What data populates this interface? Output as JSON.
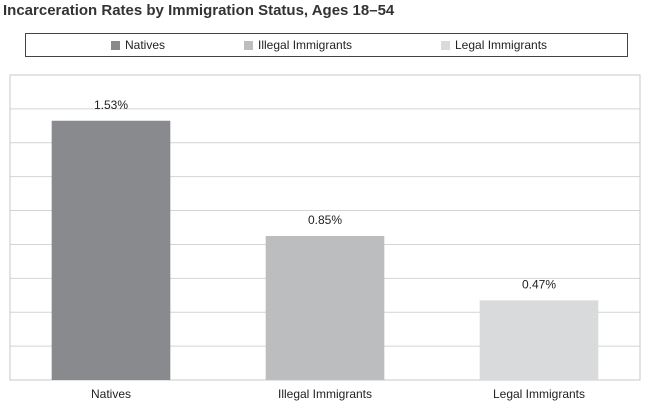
{
  "chart_data": {
    "type": "bar",
    "title": "Incarceration Rates by Immigration Status, Ages 18–54",
    "categories": [
      "Natives",
      "Illegal Immigrants",
      "Legal Immigrants"
    ],
    "values": [
      1.53,
      0.85,
      0.47
    ],
    "data_labels": [
      "1.53%",
      "0.85%",
      "0.47%"
    ],
    "colors": [
      "#888a8d",
      "#bcbdbf",
      "#d9dadb"
    ],
    "legend": [
      "Natives",
      "Illegal Immigrants",
      "Legal Immigrants"
    ],
    "legend_placement": "top",
    "ylim": [
      0,
      1.8
    ],
    "grid": true,
    "xlabel": "",
    "ylabel": ""
  }
}
